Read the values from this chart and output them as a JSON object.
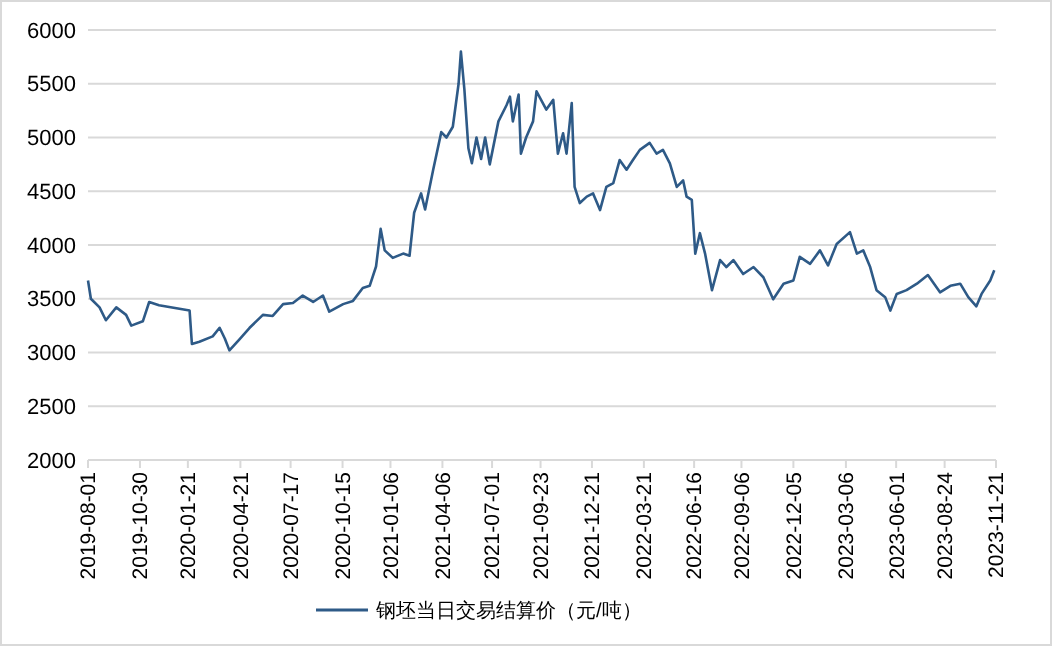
{
  "chart_data": {
    "type": "line",
    "x": [
      "2019-08-01",
      "2019-08-06",
      "2019-08-21",
      "2019-09-01",
      "2019-09-19",
      "2019-10-06",
      "2019-10-15",
      "2019-11-04",
      "2019-11-15",
      "2019-12-02",
      "2020-01-24",
      "2020-01-28",
      "2020-02-10",
      "2020-03-04",
      "2020-03-16",
      "2020-03-25",
      "2020-04-02",
      "2020-04-19",
      "2020-05-07",
      "2020-05-30",
      "2020-06-16",
      "2020-07-04",
      "2020-07-21",
      "2020-08-07",
      "2020-08-25",
      "2020-09-11",
      "2020-09-22",
      "2020-10-16",
      "2020-11-02",
      "2020-11-19",
      "2020-12-01",
      "2020-12-12",
      "2020-12-20",
      "2020-12-27",
      "2021-01-10",
      "2021-01-28",
      "2021-02-08",
      "2021-02-16",
      "2021-02-28",
      "2021-03-07",
      "2021-03-21",
      "2021-04-04",
      "2021-04-13",
      "2021-04-24",
      "2021-05-04",
      "2021-05-08",
      "2021-05-14",
      "2021-05-21",
      "2021-05-27",
      "2021-06-04",
      "2021-06-12",
      "2021-06-19",
      "2021-06-27",
      "2021-07-12",
      "2021-07-26",
      "2021-08-01",
      "2021-08-06",
      "2021-08-16",
      "2021-08-20",
      "2021-08-29",
      "2021-09-10",
      "2021-09-16",
      "2021-10-03",
      "2021-10-15",
      "2021-10-23",
      "2021-11-01",
      "2021-11-07",
      "2021-11-16",
      "2021-11-21",
      "2021-11-30",
      "2021-12-12",
      "2021-12-23",
      "2022-01-04",
      "2022-01-15",
      "2022-01-27",
      "2022-02-07",
      "2022-02-19",
      "2022-03-02",
      "2022-03-14",
      "2022-03-31",
      "2022-04-12",
      "2022-04-23",
      "2022-05-05",
      "2022-05-17",
      "2022-05-28",
      "2022-06-03",
      "2022-06-12",
      "2022-06-18",
      "2022-06-26",
      "2022-07-05",
      "2022-07-17",
      "2022-07-31",
      "2022-08-11",
      "2022-08-23",
      "2022-09-09",
      "2022-09-27",
      "2022-10-14",
      "2022-10-31",
      "2022-11-18",
      "2022-12-05",
      "2022-12-16",
      "2023-01-03",
      "2023-01-20",
      "2023-02-03",
      "2023-02-18",
      "2023-03-13",
      "2023-03-25",
      "2023-04-05",
      "2023-04-17",
      "2023-04-28",
      "2023-05-13",
      "2023-05-22",
      "2023-06-02",
      "2023-06-19",
      "2023-07-07",
      "2023-07-26",
      "2023-08-16",
      "2023-09-03",
      "2023-09-20",
      "2023-10-04",
      "2023-10-18",
      "2023-10-27",
      "2023-11-11",
      "2023-11-18"
    ],
    "series": [
      {
        "name": "钢坯当日交易结算价（元/吨）",
        "color": "#2e5a87",
        "values": [
          3670,
          3500,
          3420,
          3300,
          3420,
          3350,
          3250,
          3290,
          3470,
          3440,
          3390,
          3080,
          3100,
          3150,
          3230,
          3130,
          3020,
          3120,
          3230,
          3350,
          3340,
          3450,
          3460,
          3530,
          3470,
          3530,
          3380,
          3450,
          3480,
          3600,
          3620,
          3800,
          4150,
          3950,
          3880,
          3920,
          3900,
          4300,
          4480,
          4330,
          4700,
          5050,
          5000,
          5100,
          5500,
          5800,
          5450,
          4900,
          4760,
          5000,
          4800,
          5000,
          4750,
          5150,
          5300,
          5380,
          5150,
          5400,
          4850,
          5000,
          5150,
          5430,
          5260,
          5350,
          4850,
          5040,
          4850,
          5320,
          4540,
          4390,
          4450,
          4480,
          4325,
          4540,
          4575,
          4790,
          4700,
          4790,
          4885,
          4950,
          4850,
          4885,
          4760,
          4540,
          4600,
          4450,
          4420,
          3920,
          4110,
          3920,
          3580,
          3860,
          3795,
          3860,
          3730,
          3795,
          3700,
          3495,
          3640,
          3670,
          3890,
          3825,
          3950,
          3810,
          4010,
          4120,
          3920,
          3950,
          3795,
          3580,
          3515,
          3390,
          3545,
          3580,
          3640,
          3720,
          3560,
          3620,
          3640,
          3515,
          3430,
          3545,
          3670,
          3765
        ]
      }
    ],
    "xlim": [
      "2019-08-01",
      "2023-11-21"
    ],
    "xticks": [
      "2019-08-01",
      "2019-10-30",
      "2020-01-21",
      "2020-04-21",
      "2020-07-17",
      "2020-10-15",
      "2021-01-06",
      "2021-04-06",
      "2021-07-01",
      "2021-09-23",
      "2021-12-21",
      "2022-03-21",
      "2022-06-16",
      "2022-09-06",
      "2022-12-05",
      "2023-03-06",
      "2023-06-01",
      "2023-08-24",
      "2023-11-21"
    ],
    "ylim": [
      2000,
      6000
    ],
    "yticks": [
      2000,
      2500,
      3000,
      3500,
      4000,
      4500,
      5000,
      5500,
      6000
    ],
    "grid": "y",
    "legend": "bottom",
    "marker": "none",
    "line_style": "solid"
  }
}
